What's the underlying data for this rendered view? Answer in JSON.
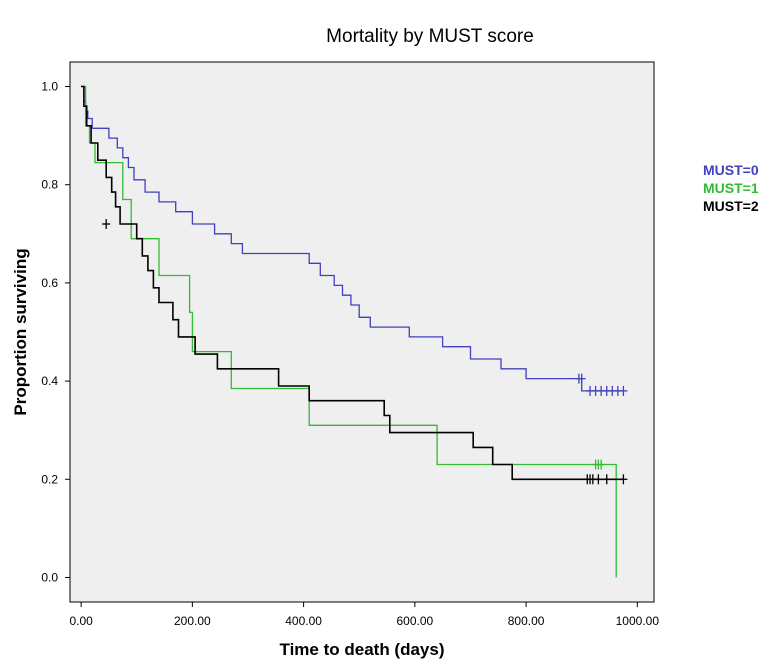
{
  "chart_data": {
    "type": "line",
    "step": true,
    "title": "Mortality by MUST score",
    "xlabel": "Time to death (days)",
    "ylabel": "Proportion surviving",
    "xlim": [
      -20,
      1030
    ],
    "ylim": [
      -0.05,
      1.05
    ],
    "xticks": [
      0,
      200,
      400,
      600,
      800,
      1000
    ],
    "xtick_labels": [
      "0.00",
      "200.00",
      "400.00",
      "600.00",
      "800.00",
      "1000.00"
    ],
    "yticks": [
      0.0,
      0.2,
      0.4,
      0.6,
      0.8,
      1.0
    ],
    "ytick_labels": [
      "0.0",
      "0.2",
      "0.4",
      "0.6",
      "0.8",
      "1.0"
    ],
    "grid": false,
    "legend_position": "right",
    "plot_background": "#efefef",
    "series": [
      {
        "name": "MUST=0",
        "color": "#4040c0",
        "points": [
          [
            0,
            1.0
          ],
          [
            5,
            0.97
          ],
          [
            8,
            0.95
          ],
          [
            12,
            0.935
          ],
          [
            20,
            0.915
          ],
          [
            50,
            0.895
          ],
          [
            65,
            0.875
          ],
          [
            75,
            0.855
          ],
          [
            85,
            0.835
          ],
          [
            95,
            0.81
          ],
          [
            115,
            0.785
          ],
          [
            140,
            0.765
          ],
          [
            170,
            0.745
          ],
          [
            200,
            0.72
          ],
          [
            240,
            0.7
          ],
          [
            270,
            0.68
          ],
          [
            290,
            0.66
          ],
          [
            410,
            0.64
          ],
          [
            430,
            0.615
          ],
          [
            455,
            0.595
          ],
          [
            470,
            0.575
          ],
          [
            485,
            0.555
          ],
          [
            500,
            0.53
          ],
          [
            520,
            0.51
          ],
          [
            590,
            0.49
          ],
          [
            650,
            0.47
          ],
          [
            700,
            0.445
          ],
          [
            755,
            0.425
          ],
          [
            800,
            0.405
          ],
          [
            900,
            0.38
          ],
          [
            975,
            0.38
          ]
        ],
        "censored_x": [
          895,
          900,
          915,
          925,
          935,
          945,
          955,
          965,
          975
        ],
        "censored_y": [
          0.405,
          0.405,
          0.38,
          0.38,
          0.38,
          0.38,
          0.38,
          0.38,
          0.38
        ]
      },
      {
        "name": "MUST=1",
        "color": "#33bb33",
        "points": [
          [
            0,
            1.0
          ],
          [
            8,
            0.92
          ],
          [
            15,
            0.885
          ],
          [
            25,
            0.845
          ],
          [
            75,
            0.77
          ],
          [
            90,
            0.69
          ],
          [
            140,
            0.615
          ],
          [
            195,
            0.54
          ],
          [
            200,
            0.46
          ],
          [
            270,
            0.385
          ],
          [
            410,
            0.31
          ],
          [
            640,
            0.23
          ],
          [
            960,
            0.23
          ],
          [
            962,
            0.0
          ]
        ],
        "censored_x": [
          925,
          930,
          935
        ],
        "censored_y": [
          0.23,
          0.23,
          0.23
        ]
      },
      {
        "name": "MUST=2",
        "color": "#000000",
        "points": [
          [
            0,
            1.0
          ],
          [
            5,
            0.96
          ],
          [
            10,
            0.92
          ],
          [
            18,
            0.885
          ],
          [
            30,
            0.85
          ],
          [
            45,
            0.815
          ],
          [
            55,
            0.785
          ],
          [
            62,
            0.755
          ],
          [
            70,
            0.72
          ],
          [
            100,
            0.69
          ],
          [
            110,
            0.655
          ],
          [
            120,
            0.625
          ],
          [
            130,
            0.59
          ],
          [
            140,
            0.56
          ],
          [
            165,
            0.525
          ],
          [
            175,
            0.49
          ],
          [
            205,
            0.455
          ],
          [
            245,
            0.425
          ],
          [
            355,
            0.39
          ],
          [
            410,
            0.36
          ],
          [
            545,
            0.33
          ],
          [
            555,
            0.295
          ],
          [
            705,
            0.265
          ],
          [
            740,
            0.23
          ],
          [
            775,
            0.2
          ],
          [
            975,
            0.2
          ]
        ],
        "censored_x": [
          45,
          910,
          915,
          920,
          930,
          945,
          975
        ],
        "censored_y": [
          0.72,
          0.2,
          0.2,
          0.2,
          0.2,
          0.2,
          0.2
        ]
      }
    ]
  }
}
